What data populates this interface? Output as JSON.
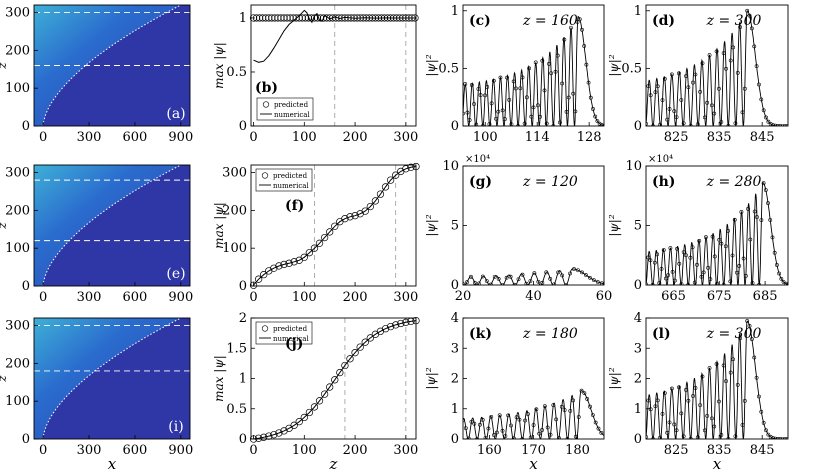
{
  "figure": {
    "row_labels": [
      "(a)",
      "(b)",
      "(c)",
      "(d)",
      "(e)",
      "(f)",
      "(g)",
      "(h)",
      "(i)",
      "(j)",
      "(k)",
      "(l)"
    ],
    "legend": {
      "predicted": "predicted",
      "numerical": "numerical"
    },
    "axis_symbols": {
      "z": "z",
      "x": "x",
      "maxpsi": "max |ψ|",
      "psi2": "|ψ|²",
      "exp": "×10⁴"
    }
  },
  "chart_data": [
    {
      "id": "a",
      "type": "heatmap",
      "label": "(a)",
      "xlabel": "",
      "ylabel": "z",
      "xticks": [
        0,
        300,
        600,
        900
      ],
      "yticks": [
        0,
        100,
        200,
        300
      ],
      "xlim": [
        -60,
        960
      ],
      "ylim": [
        0,
        320
      ],
      "dashed_z": [
        160,
        300
      ],
      "boundary": "x = 900·(z/320)^2 approx"
    },
    {
      "id": "e",
      "type": "heatmap",
      "label": "(e)",
      "xlabel": "",
      "ylabel": "z",
      "xticks": [
        0,
        300,
        600,
        900
      ],
      "yticks": [
        0,
        100,
        200,
        300
      ],
      "xlim": [
        -60,
        960
      ],
      "ylim": [
        0,
        320
      ],
      "dashed_z": [
        120,
        280
      ]
    },
    {
      "id": "i",
      "type": "heatmap",
      "label": "(i)",
      "xlabel": "x",
      "ylabel": "z",
      "xticks": [
        0,
        300,
        600,
        900
      ],
      "yticks": [
        0,
        100,
        200,
        300
      ],
      "xlim": [
        -60,
        960
      ],
      "ylim": [
        0,
        320
      ],
      "dashed_z": [
        180,
        300
      ]
    },
    {
      "id": "b",
      "type": "line",
      "label": "(b)",
      "ylabel": "max |ψ|",
      "xlabel": "",
      "xticks": [
        0,
        100,
        200,
        300
      ],
      "yticks": [
        0,
        0.5,
        1
      ],
      "ytick_labels": [
        "0",
        "0.5",
        "1"
      ],
      "xlim": [
        -5,
        320
      ],
      "ylim": [
        0,
        1.12
      ],
      "series": [
        {
          "name": "predicted",
          "style": "markers",
          "x": [
            0,
            10,
            20,
            30,
            40,
            50,
            60,
            70,
            80,
            90,
            100,
            110,
            120,
            130,
            140,
            150,
            160,
            170,
            180,
            190,
            200,
            210,
            220,
            230,
            240,
            250,
            260,
            270,
            280,
            290,
            300,
            310,
            320
          ],
          "y_const": 1.0
        },
        {
          "name": "numerical",
          "style": "line",
          "x": [
            0,
            10,
            20,
            30,
            40,
            50,
            60,
            70,
            80,
            90,
            100,
            105,
            110,
            115,
            120,
            125,
            130,
            135,
            140,
            145,
            150,
            160,
            170,
            180,
            200,
            220,
            240,
            260,
            280,
            300,
            320
          ],
          "y": [
            0.61,
            0.59,
            0.6,
            0.65,
            0.72,
            0.8,
            0.88,
            0.94,
            0.98,
            1.02,
            1.07,
            1.05,
            0.99,
            0.96,
            1.02,
            1.04,
            0.98,
            0.97,
            1.02,
            1.01,
            0.99,
            1.01,
            0.995,
            1.005,
            0.998,
            1.002,
            0.999,
            1.001,
            1.0,
            1.0,
            1.0
          ]
        }
      ],
      "vlines": [
        160,
        300
      ]
    },
    {
      "id": "f",
      "type": "line",
      "label": "(f)",
      "ylabel": "max |ψ|",
      "xlabel": "",
      "xticks": [
        0,
        100,
        200,
        300
      ],
      "yticks": [
        0,
        100,
        200,
        300
      ],
      "ytick_labels": [
        "0",
        "100",
        "200",
        "300"
      ],
      "xlim": [
        -5,
        320
      ],
      "ylim": [
        0,
        320
      ],
      "series": [
        {
          "name": "predicted",
          "style": "markers",
          "x": [
            0,
            10,
            20,
            30,
            40,
            50,
            60,
            70,
            80,
            90,
            100,
            110,
            120,
            130,
            140,
            150,
            160,
            170,
            180,
            190,
            200,
            210,
            220,
            230,
            240,
            250,
            260,
            270,
            280,
            290,
            300,
            310,
            320
          ],
          "y": [
            2,
            18,
            30,
            40,
            47,
            53,
            57,
            60,
            64,
            68,
            76,
            88,
            100,
            113,
            128,
            143,
            158,
            170,
            178,
            183,
            186,
            191,
            198,
            210,
            225,
            243,
            262,
            280,
            293,
            303,
            310,
            314,
            316
          ]
        },
        {
          "name": "numerical",
          "style": "line",
          "x": [
            0,
            10,
            20,
            30,
            40,
            50,
            60,
            70,
            80,
            90,
            100,
            110,
            120,
            130,
            140,
            150,
            160,
            170,
            180,
            190,
            200,
            210,
            220,
            230,
            240,
            250,
            260,
            270,
            280,
            290,
            300,
            310,
            320
          ],
          "y": [
            2,
            18,
            30,
            40,
            47,
            53,
            57,
            60,
            64,
            68,
            76,
            88,
            100,
            113,
            128,
            143,
            158,
            170,
            178,
            183,
            186,
            191,
            198,
            210,
            225,
            243,
            262,
            280,
            293,
            303,
            310,
            314,
            316
          ]
        }
      ],
      "vlines": [
        120,
        280
      ]
    },
    {
      "id": "j",
      "type": "line",
      "label": "(j)",
      "ylabel": "max |ψ|",
      "xlabel": "z",
      "xticks": [
        0,
        100,
        200,
        300
      ],
      "yticks": [
        0,
        0.5,
        1,
        1.5,
        2
      ],
      "ytick_labels": [
        "0",
        "0.5",
        "1",
        "1.5",
        "2"
      ],
      "xlim": [
        -5,
        320
      ],
      "ylim": [
        0,
        2
      ],
      "series": [
        {
          "name": "predicted",
          "style": "markers",
          "x": "0..320 step 10",
          "formula": "2/(1+exp(-(z-160)/42)) normalized"
        },
        {
          "name": "numerical",
          "style": "line",
          "x": "0..320 step 5",
          "formula": "same"
        }
      ],
      "vlines": [
        180,
        300
      ]
    },
    {
      "id": "c",
      "type": "line",
      "label": "(c)",
      "annotation": "z = 160",
      "ylabel": "|ψ|²",
      "xlabel": "",
      "xticks": [
        100,
        114,
        128
      ],
      "yticks": [
        0,
        0.5,
        1
      ],
      "ytick_labels": [
        "0",
        "0.5",
        "1"
      ],
      "xlim": [
        94,
        132
      ],
      "ylim": [
        0,
        1.05
      ],
      "pattern": {
        "peak_x": 125,
        "peak_y": 0.95,
        "period": 1.9,
        "base": 0.32
      }
    },
    {
      "id": "d",
      "type": "line",
      "label": "(d)",
      "annotation": "z = 300",
      "ylabel": "|ψ|²",
      "xlabel": "",
      "xticks": [
        825,
        835,
        845
      ],
      "yticks": [
        0,
        0.5,
        1
      ],
      "ytick_labels": [
        "0",
        "0.5",
        "1"
      ],
      "xlim": [
        818,
        851
      ],
      "ylim": [
        0,
        1.05
      ],
      "pattern": {
        "peak_x": 841.5,
        "peak_y": 1.0,
        "period": 1.75,
        "base": 0.32
      }
    },
    {
      "id": "g",
      "type": "line",
      "label": "(g)",
      "annotation": "z = 120",
      "ylabel": "|ψ|²",
      "xlabel": "",
      "xticks": [
        20,
        40,
        60
      ],
      "yticks": [
        0,
        5,
        10
      ],
      "ytick_labels": [
        "0",
        "5",
        "10"
      ],
      "exponent": "×10⁴",
      "xlim": [
        20,
        60
      ],
      "ylim": [
        0,
        10
      ],
      "pattern": {
        "peak_x": 51,
        "peak_y": 1.35,
        "period": 3.6,
        "base": 0.45
      }
    },
    {
      "id": "h",
      "type": "line",
      "label": "(h)",
      "annotation": "z = 280",
      "ylabel": "|ψ|²",
      "xlabel": "",
      "xticks": [
        665,
        675,
        685
      ],
      "yticks": [
        0,
        5,
        10
      ],
      "ytick_labels": [
        "0",
        "5",
        "10"
      ],
      "exponent": "×10⁴",
      "xlim": [
        659,
        690
      ],
      "ylim": [
        0,
        10
      ],
      "pattern": {
        "peak_x": 684.5,
        "peak_y": 8.6,
        "period": 1.55,
        "base": 2.4
      }
    },
    {
      "id": "k",
      "type": "line",
      "label": "(k)",
      "annotation": "z = 180",
      "ylabel": "|ψ|²",
      "xlabel": "x",
      "xticks": [
        160,
        170,
        180
      ],
      "yticks": [
        0,
        1,
        2,
        3,
        4
      ],
      "ytick_labels": [
        "0",
        "1",
        "2",
        "3",
        "4"
      ],
      "xlim": [
        154,
        186
      ],
      "ylim": [
        0,
        4
      ],
      "pattern": {
        "peak_x": 180.8,
        "peak_y": 1.6,
        "period": 2.05,
        "base": 0.55
      }
    },
    {
      "id": "l",
      "type": "line",
      "label": "(l)",
      "annotation": "z = 300",
      "ylabel": "|ψ|²",
      "xlabel": "x",
      "xticks": [
        825,
        835,
        845
      ],
      "yticks": [
        0,
        1,
        2,
        3,
        4
      ],
      "ytick_labels": [
        "0",
        "1",
        "2",
        "3",
        "4"
      ],
      "xlim": [
        818,
        851
      ],
      "ylim": [
        0,
        4
      ],
      "pattern": {
        "peak_x": 841.5,
        "peak_y": 3.9,
        "period": 1.75,
        "base": 1.15
      }
    }
  ]
}
